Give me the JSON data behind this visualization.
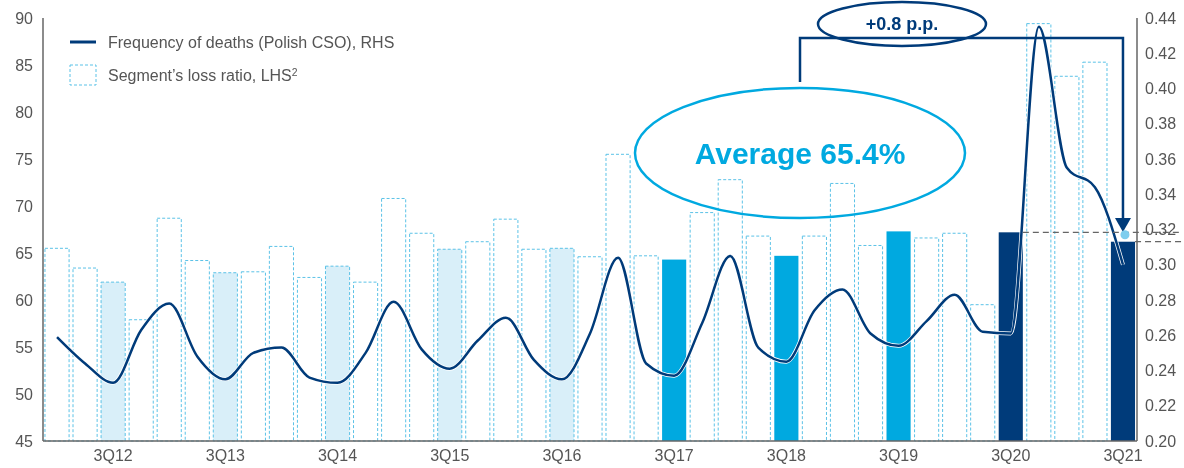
{
  "chart_data": {
    "type": "bar",
    "categories": [
      null,
      null,
      "3Q12",
      null,
      null,
      null,
      "3Q13",
      null,
      null,
      null,
      "3Q14",
      null,
      null,
      null,
      "3Q15",
      null,
      null,
      null,
      "3Q16",
      null,
      null,
      null,
      "3Q17",
      null,
      null,
      null,
      "3Q18",
      null,
      null,
      null,
      "3Q19",
      null,
      null,
      null,
      "3Q20",
      null,
      null,
      null,
      "3Q21"
    ],
    "series": [
      {
        "name": "Segment’s loss ratio, LHS$^{2}$",
        "color": "#5bc2e7",
        "values": [
          65.5,
          63.4,
          61.9,
          57.9,
          68.7,
          64.2,
          62.9,
          63.0,
          65.7,
          62.4,
          63.6,
          61.9,
          70.8,
          67.1,
          65.4,
          66.2,
          68.6,
          65.4,
          65.5,
          64.6,
          75.5,
          64.7,
          64.3,
          69.3,
          72.8,
          66.8,
          64.7,
          66.8,
          72.4,
          65.8,
          67.3,
          66.6,
          67.1,
          59.5,
          67.2,
          89.4,
          83.8,
          85.3,
          66.2
        ],
        "colors": [
          "#ffffff",
          "#ffffff",
          "#d9eff9",
          "#ffffff",
          "#ffffff",
          "#ffffff",
          "#d9eff9",
          "#ffffff",
          "#ffffff",
          "#ffffff",
          "#d9eff9",
          "#ffffff",
          "#ffffff",
          "#ffffff",
          "#d9eff9",
          "#ffffff",
          "#ffffff",
          "#ffffff",
          "#d9eff9",
          "#ffffff",
          "#ffffff",
          "#ffffff",
          "#00a9e0",
          "#ffffff",
          "#ffffff",
          "#ffffff",
          "#00a9e0",
          "#ffffff",
          "#ffffff",
          "#ffffff",
          "#00a9e0",
          "#ffffff",
          "#ffffff",
          "#ffffff",
          "#003b7a",
          "#ffffff",
          "#ffffff",
          "#ffffff",
          "#003b7a"
        ]
      },
      {
        "name": "Frequency of deaths (Polish CSO), RHS",
        "type": "line",
        "axis": "y2",
        "color": "#003b7a",
        "values": [
          0.259,
          0.244,
          0.233,
          0.263,
          0.278,
          0.248,
          0.235,
          0.25,
          0.253,
          0.236,
          0.233,
          0.25,
          0.279,
          0.252,
          0.241,
          0.257,
          0.27,
          0.246,
          0.235,
          0.261,
          0.304,
          0.244,
          0.237,
          0.267,
          0.305,
          0.253,
          0.245,
          0.274,
          0.286,
          0.261,
          0.254,
          0.268,
          0.283,
          0.262,
          0.261,
          0.435,
          0.355,
          0.344,
          0.3
        ]
      }
    ],
    "ylim": [
      45,
      90
    ],
    "yticks": [
      45,
      50,
      55,
      60,
      65,
      70,
      75,
      80,
      85,
      90
    ],
    "y2lim": [
      0.2,
      0.44
    ],
    "y2ticks": [
      {
        "value": 0.2,
        "label": "0.20"
      },
      {
        "value": 0.22,
        "label": "0.22"
      },
      {
        "value": 0.24,
        "label": "0.24"
      },
      {
        "value": 0.26,
        "label": "0.26"
      },
      {
        "value": 0.28,
        "label": "0.28"
      },
      {
        "value": 0.3,
        "label": "0.30"
      },
      {
        "value": 0.32,
        "label": "0.32"
      },
      {
        "value": 0.34,
        "label": "0.34"
      },
      {
        "value": 0.36,
        "label": "0.36"
      },
      {
        "value": 0.38,
        "label": "0.38"
      },
      {
        "value": 0.4,
        "label": "0.40"
      },
      {
        "value": 0.42,
        "label": "0.42"
      },
      {
        "value": 0.44,
        "label": "0.44"
      }
    ],
    "ref_lines": [
      {
        "axis": "y",
        "value": 67.2,
        "color": "#666666",
        "line_style": "dashed"
      }
    ],
    "annotations": [
      "Average 65.4%",
      "+0.8 p.p."
    ],
    "legend": "top left",
    "grid": false
  }
}
